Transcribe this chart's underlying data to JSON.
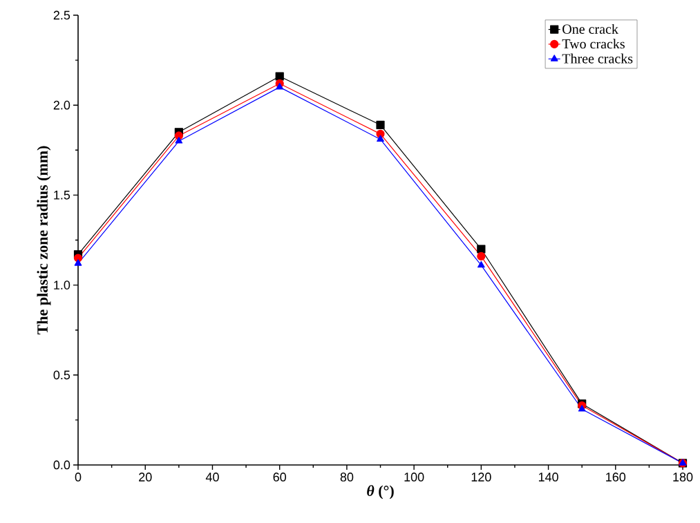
{
  "chart_data": {
    "type": "line",
    "xlabel": "*θ* (°)",
    "ylabel": "The plastic zone radius (mm)",
    "x": [
      0,
      30,
      60,
      90,
      120,
      150,
      180
    ],
    "series": [
      {
        "name": "One crack",
        "color": "#000000",
        "marker": "square",
        "values": [
          1.17,
          1.85,
          2.16,
          1.89,
          1.2,
          0.34,
          0.01
        ]
      },
      {
        "name": "Two cracks",
        "color": "#ff0000",
        "marker": "circle",
        "values": [
          1.15,
          1.83,
          2.12,
          1.84,
          1.16,
          0.33,
          0.01
        ]
      },
      {
        "name": "Three cracks",
        "color": "#0000ff",
        "marker": "triangle",
        "values": [
          1.12,
          1.8,
          2.1,
          1.81,
          1.11,
          0.31,
          0.01
        ]
      }
    ],
    "xlim": [
      0,
      180
    ],
    "xticks": [
      0,
      20,
      40,
      60,
      80,
      100,
      120,
      140,
      160,
      180
    ],
    "ylim": [
      0,
      2.5
    ],
    "yticks": [
      {
        "value": 0,
        "label": "0.0"
      },
      {
        "value": 0.5,
        "label": "0.5"
      },
      {
        "value": 1,
        "label": "1.0"
      },
      {
        "value": 1.5,
        "label": "1.5"
      },
      {
        "value": 2,
        "label": "2.0"
      },
      {
        "value": 2.5,
        "label": "2.5"
      }
    ],
    "legend": "top right",
    "grid": false,
    "line_style": "solid"
  }
}
